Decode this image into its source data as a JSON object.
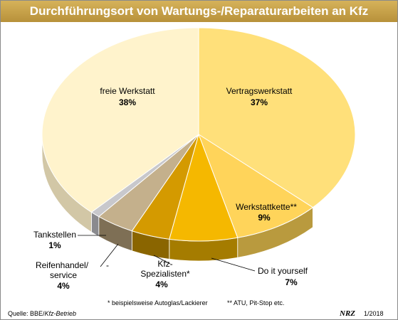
{
  "title": "Durchführungsort von Wartungs-/Reparaturarbeiten an Kfz",
  "chart_data": {
    "type": "pie",
    "title": "Durchführungsort von Wartungs-/Reparaturarbeiten an Kfz",
    "slices": [
      {
        "label": "Vertragswerkstatt",
        "value": 37,
        "value_label": "37%",
        "color": "#FFE07A",
        "side": "#B8A14E"
      },
      {
        "label": "Werkstattkette**",
        "value": 9,
        "value_label": "9%",
        "color": "#FFD45A",
        "side": "#B99A3E"
      },
      {
        "label": "Do it yourself",
        "value": 7,
        "value_label": "7%",
        "color": "#F5B800",
        "side": "#A57C00"
      },
      {
        "label": "Kfz-Spezialisten*",
        "value": 4,
        "value_label": "4%",
        "color": "#D49A00",
        "side": "#8A6500"
      },
      {
        "label": "Reifenhandel/service",
        "value": 4,
        "value_label": "4%",
        "color": "#C4B08C",
        "side": "#7E6F55"
      },
      {
        "label": "Tankstellen",
        "value": 1,
        "value_label": "1%",
        "color": "#C8C8CC",
        "side": "#8A8A8E"
      },
      {
        "label": "freie Werkstatt",
        "value": 38,
        "value_label": "38%",
        "color": "#FFF3CC",
        "side": "#D2C7A6"
      }
    ]
  },
  "labels": {
    "vertrag_name": "Vertragswerkstatt",
    "vertrag_pct": "37%",
    "freie_name": "freie Werkstatt",
    "freie_pct": "38%",
    "kette_name": "Werkstattkette**",
    "kette_pct": "9%",
    "diy_name": "Do it yourself",
    "diy_pct": "7%",
    "kfz_name1": "Kfz-",
    "kfz_name2": "Spezialisten*",
    "kfz_pct": "4%",
    "reifen_name1": "Reifenhandel/",
    "reifen_dash": "-",
    "reifen_name2": "service",
    "reifen_pct": "4%",
    "tank_name": "Tankstellen",
    "tank_pct": "1%"
  },
  "footnotes": {
    "note1": "* beispielsweise Autoglas/Lackierer",
    "note2": "** ATU, Pit-Stop etc."
  },
  "source": "Quelle: BBE/",
  "source_italic": "Kfz-Betrieb",
  "logo": "NRZ",
  "date": "1/2018"
}
